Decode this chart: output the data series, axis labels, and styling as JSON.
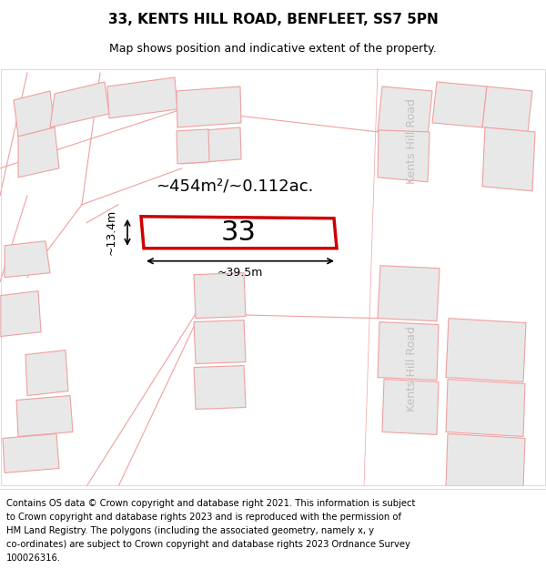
{
  "title": "33, KENTS HILL ROAD, BENFLEET, SS7 5PN",
  "subtitle": "Map shows position and indicative extent of the property.",
  "footer_lines": [
    "Contains OS data © Crown copyright and database right 2021. This information is subject",
    "to Crown copyright and database rights 2023 and is reproduced with the permission of",
    "HM Land Registry. The polygons (including the associated geometry, namely x, y",
    "co-ordinates) are subject to Crown copyright and database rights 2023 Ordnance Survey",
    "100026316."
  ],
  "area_label": "~454m²/~0.112ac.",
  "width_label": "~39.5m",
  "height_label": "~13.4m",
  "plot_number": "33",
  "highlight_color": "#cc0000",
  "polygon_fill": "#e8e8e8",
  "polygon_edge_light": "#f0a0a0",
  "border_color": "#cccccc",
  "road_text_color": "#c0c0c0",
  "title_fontsize": 11,
  "subtitle_fontsize": 9,
  "footer_fontsize": 7.2,
  "road_label": "Kents Hill Road"
}
